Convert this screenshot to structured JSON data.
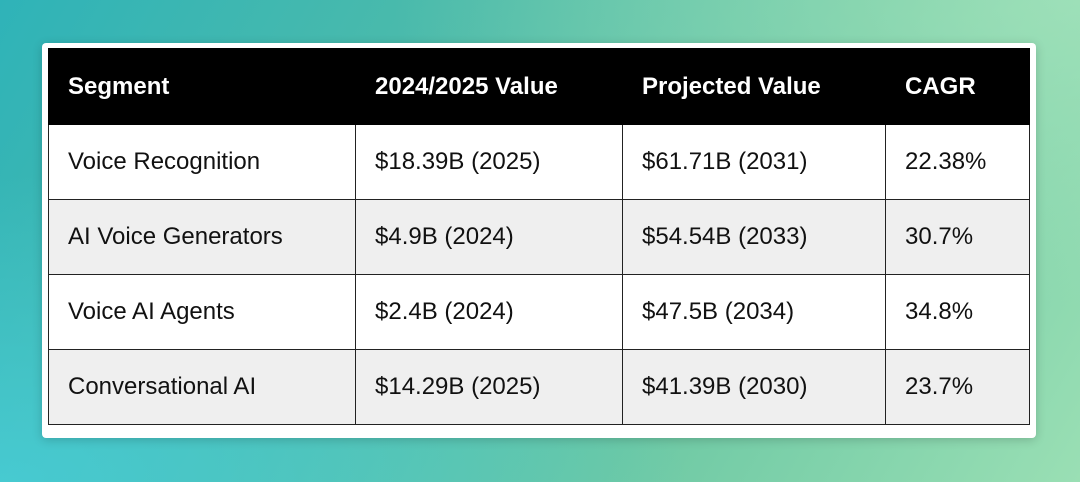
{
  "table": {
    "headers": [
      "Segment",
      "2024/2025 Value",
      "Projected Value",
      "CAGR"
    ],
    "rows": [
      [
        "Voice Recognition",
        "$18.39B (2025)",
        "$61.71B (2031)",
        "22.38%"
      ],
      [
        "AI Voice Generators",
        "$4.9B (2024)",
        "$54.54B (2033)",
        "30.7%"
      ],
      [
        "Voice AI Agents",
        "$2.4B (2024)",
        "$47.5B (2034)",
        "34.8%"
      ],
      [
        "Conversational AI",
        "$14.29B (2025)",
        "$41.39B (2030)",
        "23.7%"
      ]
    ]
  },
  "colors": {
    "header_background": "#000000",
    "header_text": "#ffffff",
    "row_alt_background": "#efefef"
  }
}
